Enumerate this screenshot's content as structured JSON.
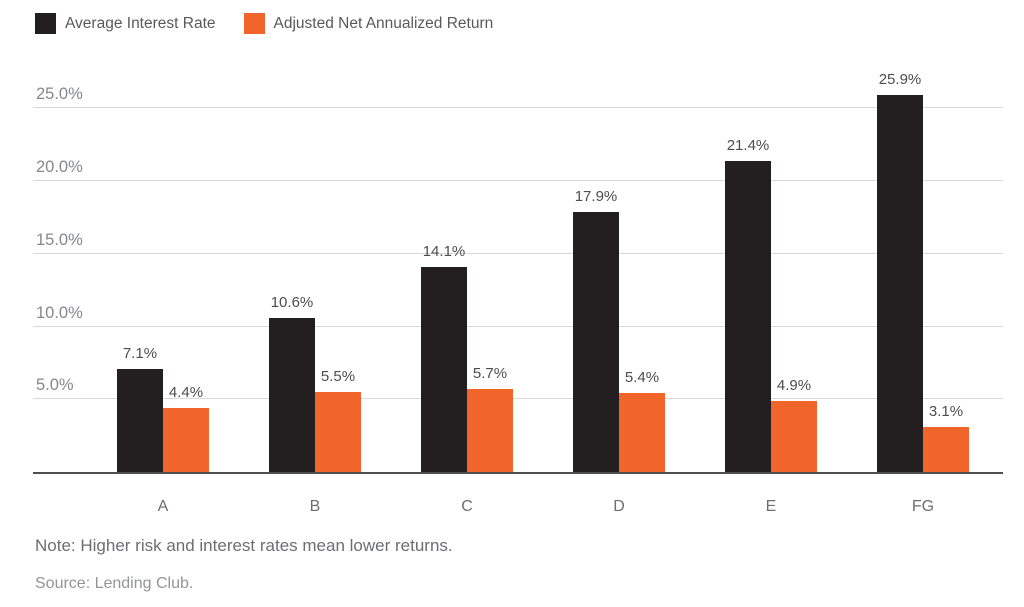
{
  "colors": {
    "interest_bar": "#231f20",
    "return_bar": "#f2652a",
    "gridline": "#d9d9d9",
    "baseline": "#4d4e50",
    "tick_label": "#85878a",
    "value_label": "#4d4d4d",
    "note_text": "#6d6e71",
    "source_text": "#939598"
  },
  "legend": {
    "items": [
      {
        "label": "Average Interest Rate",
        "color": "#231f20"
      },
      {
        "label": "Adjusted Net Annualized Return",
        "color": "#f2652a"
      }
    ]
  },
  "footer": {
    "note": "Note: Higher risk and interest rates mean lower returns.",
    "source": "Source: Lending Club."
  },
  "chart_data": {
    "type": "bar",
    "title": "",
    "xlabel": "",
    "ylabel": "",
    "categories": [
      "A",
      "B",
      "C",
      "D",
      "E",
      "FG"
    ],
    "series": [
      {
        "name": "Average Interest Rate",
        "color": "#231f20",
        "values": [
          7.1,
          10.6,
          14.1,
          17.9,
          21.4,
          25.9
        ],
        "labels": [
          "7.1%",
          "10.6%",
          "14.1%",
          "17.9%",
          "21.4%",
          "25.9%"
        ]
      },
      {
        "name": "Adjusted Net Annualized Return",
        "color": "#f2652a",
        "values": [
          4.4,
          5.5,
          5.7,
          5.4,
          4.9,
          3.1
        ],
        "labels": [
          "4.4%",
          "5.5%",
          "5.7%",
          "5.4%",
          "4.9%",
          "3.1%"
        ]
      }
    ],
    "y_ticks": [
      {
        "value": 5,
        "label": "5.0%"
      },
      {
        "value": 10,
        "label": "10.0%"
      },
      {
        "value": 15,
        "label": "15.0%"
      },
      {
        "value": 20,
        "label": "20.0%"
      },
      {
        "value": 25,
        "label": "25.0%"
      }
    ],
    "ylim": [
      0,
      26.6
    ],
    "grid": true,
    "legend_position": "top-left"
  }
}
